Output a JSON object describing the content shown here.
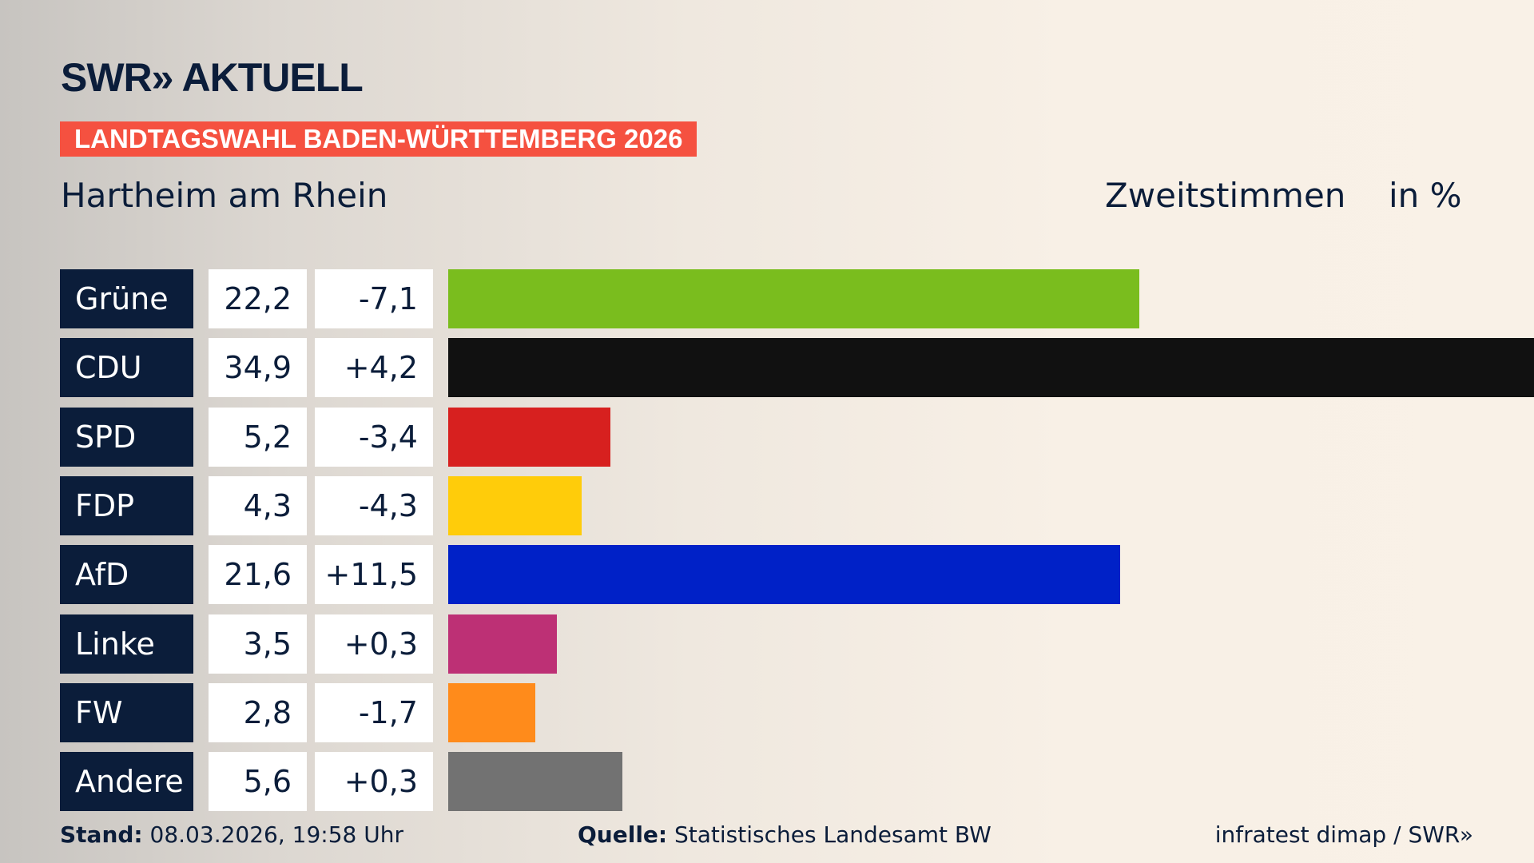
{
  "header": {
    "logo": "SWR» AKTUELL",
    "banner": "LANDTAGSWAHL BADEN-WÜRTTEMBERG 2026",
    "region": "Hartheim am Rhein",
    "metric": "Zweitstimmen",
    "unit": "in %"
  },
  "chart_data": {
    "type": "bar",
    "orientation": "horizontal",
    "categories": [
      "Grüne",
      "CDU",
      "SPD",
      "FDP",
      "AfD",
      "Linke",
      "FW",
      "Andere"
    ],
    "values": [
      22.2,
      34.9,
      5.2,
      4.3,
      21.6,
      3.5,
      2.8,
      5.6
    ],
    "values_label": [
      "22,2",
      "34,9",
      "5,2",
      "4,3",
      "21,6",
      "3,5",
      "2,8",
      "5,6"
    ],
    "diff_label": [
      "-7,1",
      "+4,2",
      "-3,4",
      "-4,3",
      "+11,5",
      "+0,3",
      "-1,7",
      "+0,3"
    ],
    "colors": [
      "#7abd1e",
      "#111111",
      "#d7201f",
      "#ffcc0a",
      "#0021c7",
      "#bd3075",
      "#ff8b1b",
      "#727272"
    ],
    "title": "Zweitstimmen",
    "ylabel": "in %"
  },
  "footer": {
    "stand_label": "Stand:",
    "stand_value": "08.03.2026, 19:58 Uhr",
    "source_label": "Quelle:",
    "source_value": "Statistisches Landesamt BW",
    "credit": "infratest dimap / SWR»"
  }
}
